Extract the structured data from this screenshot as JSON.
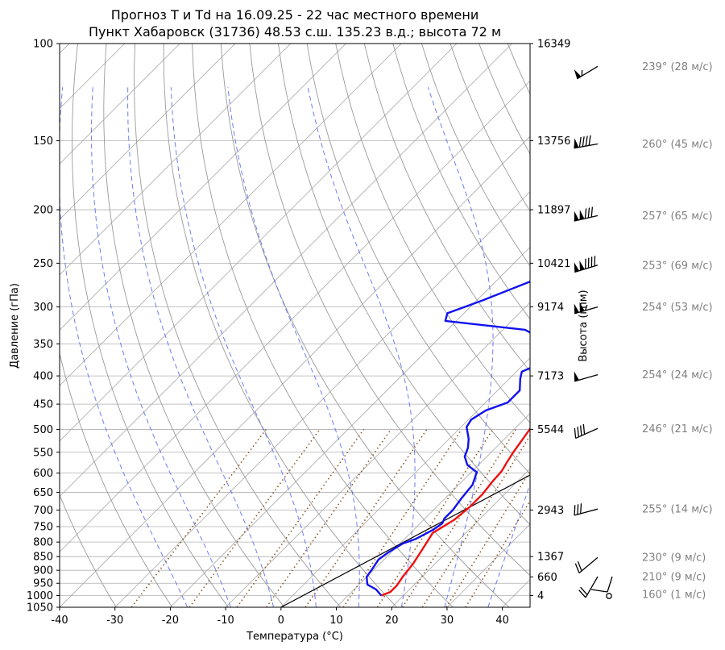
{
  "chart_data": {
    "type": "line",
    "title": "Прогноз T и Td на 16.09.25 - 22 час местного времени",
    "subtitle": "Пункт Хабаровск (31736) 48.53 с.ш. 135.23 в.д.; высота 72 м",
    "xlabel": "Температура (°C)",
    "ylabel": "Давление (гПа)",
    "ylabel_right": "Высота (гпм)",
    "xlim": [
      -40,
      45
    ],
    "ylim": [
      1050,
      100
    ],
    "yscale": "log",
    "grid": true,
    "x_ticks": [
      -40,
      -30,
      -20,
      -10,
      0,
      10,
      20,
      30,
      40
    ],
    "y_ticks": [
      100,
      150,
      200,
      250,
      300,
      350,
      400,
      450,
      500,
      550,
      600,
      650,
      700,
      750,
      800,
      850,
      900,
      950,
      1000,
      1050
    ],
    "height_labels": [
      {
        "p": 100,
        "label": "16349"
      },
      {
        "p": 150,
        "label": "13756"
      },
      {
        "p": 200,
        "label": "11897"
      },
      {
        "p": 250,
        "label": "10421"
      },
      {
        "p": 300,
        "label": "9174"
      },
      {
        "p": 400,
        "label": "7173"
      },
      {
        "p": 500,
        "label": "5544"
      },
      {
        "p": 700,
        "label": "2943"
      },
      {
        "p": 850,
        "label": "1367"
      },
      {
        "p": 925,
        "label": "660"
      },
      {
        "p": 1000,
        "label": "4"
      }
    ],
    "series": [
      {
        "color": "#ee1111",
        "points": [
          [
            16,
            1000
          ],
          [
            17,
            985
          ],
          [
            17,
            960
          ],
          [
            16.5,
            925
          ],
          [
            16,
            875
          ],
          [
            15,
            820
          ],
          [
            14,
            770
          ],
          [
            15.5,
            730
          ],
          [
            16,
            690
          ],
          [
            16,
            655
          ],
          [
            15.5,
            620
          ],
          [
            15.3,
            595
          ],
          [
            14.7,
            575
          ],
          [
            14,
            550
          ],
          [
            13.2,
            515
          ],
          [
            12.2,
            475
          ],
          [
            11,
            435
          ],
          [
            10.5,
            400
          ],
          [
            10.5,
            370
          ],
          [
            11.5,
            345
          ],
          [
            12.5,
            335
          ],
          [
            14,
            318
          ],
          [
            16,
            301
          ],
          [
            17.5,
            288
          ],
          [
            19.5,
            276
          ],
          [
            20.5,
            265
          ],
          [
            21,
            252
          ],
          [
            20.5,
            240
          ],
          [
            20,
            225
          ],
          [
            20.5,
            213
          ],
          [
            21.5,
            200
          ],
          [
            23,
            183
          ],
          [
            24,
            172
          ],
          [
            26.5,
            160
          ],
          [
            28,
            150
          ],
          [
            29,
            141
          ],
          [
            30.5,
            130
          ],
          [
            32.5,
            120
          ],
          [
            34.5,
            112
          ],
          [
            36.5,
            107
          ],
          [
            38.5,
            103
          ],
          [
            40,
            100
          ]
        ]
      },
      {
        "color": "#1111ee",
        "points": [
          [
            16,
            1000
          ],
          [
            14,
            975
          ],
          [
            11.5,
            955
          ],
          [
            10,
            925
          ],
          [
            9.5,
            890
          ],
          [
            9,
            860
          ],
          [
            9.5,
            835
          ],
          [
            10.5,
            805
          ],
          [
            12,
            790
          ],
          [
            13.5,
            760
          ],
          [
            14,
            740
          ],
          [
            13.5,
            725
          ],
          [
            13.5,
            700
          ],
          [
            13,
            670
          ],
          [
            12.5,
            630
          ],
          [
            11,
            598
          ],
          [
            8,
            580
          ],
          [
            6,
            560
          ],
          [
            5,
            540
          ],
          [
            3.5,
            520
          ],
          [
            1,
            495
          ],
          [
            0.5,
            480
          ],
          [
            1.5,
            462
          ],
          [
            4,
            447
          ],
          [
            4,
            425
          ],
          [
            2,
            405
          ],
          [
            1,
            393
          ],
          [
            4,
            372
          ],
          [
            3.5,
            356
          ],
          [
            -6,
            330
          ],
          [
            -22,
            318
          ],
          [
            -23,
            308
          ],
          [
            -19,
            292
          ],
          [
            -15,
            275
          ],
          [
            -10,
            255
          ],
          [
            -8,
            245
          ],
          [
            -4,
            225
          ],
          [
            -2,
            210
          ],
          [
            0,
            200
          ],
          [
            2,
            185
          ],
          [
            5,
            170
          ],
          [
            8,
            158
          ],
          [
            10.5,
            150
          ],
          [
            12.5,
            140
          ],
          [
            14.5,
            132
          ],
          [
            16.5,
            125
          ],
          [
            19,
            118
          ],
          [
            21,
            112
          ],
          [
            22.5,
            106
          ],
          [
            24,
            102
          ],
          [
            24.5,
            100
          ]
        ]
      }
    ],
    "lcl_line": [
      [
        0,
        1050
      ],
      [
        40,
        370
      ]
    ],
    "wind_barbs": [
      {
        "p": 110,
        "label": "239° (28 м/с)"
      },
      {
        "p": 152,
        "label": "260° (45 м/с)"
      },
      {
        "p": 205,
        "label": "257° (65 м/с)"
      },
      {
        "p": 252,
        "label": "253° (69 м/с)"
      },
      {
        "p": 300,
        "label": "254° (53 м/с)"
      },
      {
        "p": 398,
        "label": "254° (24 м/с)"
      },
      {
        "p": 498,
        "label": "246° (21 м/с)"
      },
      {
        "p": 697,
        "label": "255° (14 м/с)"
      },
      {
        "p": 853,
        "label": "230° (9 м/с)"
      },
      {
        "p": 924,
        "label": "210° (9 м/с)"
      },
      {
        "p": 995,
        "label": "160° (1 м/с)"
      }
    ]
  }
}
